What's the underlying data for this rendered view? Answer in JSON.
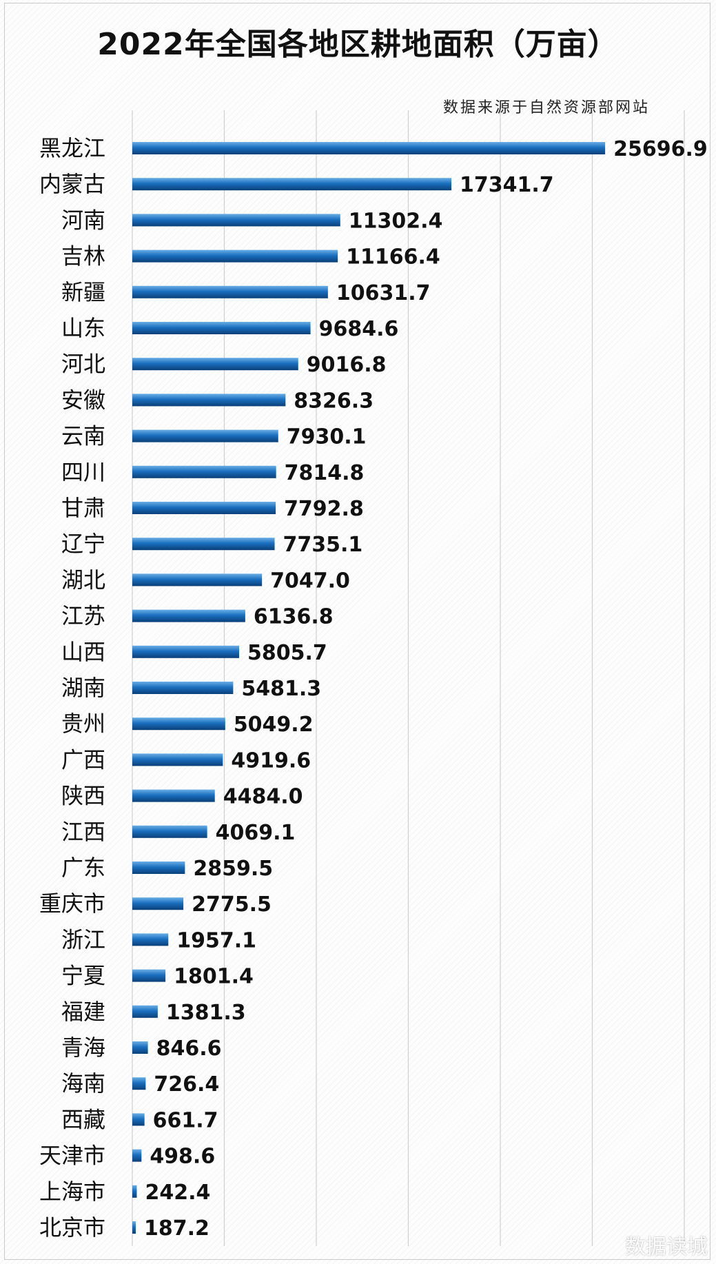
{
  "title": "2022年全国各地区耕地面积（万亩）",
  "source": "数据来源于自然资源部网站",
  "watermark": "数据读城",
  "colors": {
    "bar_dark": "#0a4a8a",
    "bar_mid": "#1a6fbf",
    "bar_light": "#5fa3e0",
    "grid": "#cfcfcf"
  },
  "chart_data": {
    "type": "bar",
    "orientation": "horizontal",
    "title": "2022年全国各地区耕地面积（万亩）",
    "xlim": [
      0,
      30000
    ],
    "grid": true,
    "categories": [
      "黑龙江",
      "内蒙古",
      "河南",
      "吉林",
      "新疆",
      "山东",
      "河北",
      "安徽",
      "云南",
      "四川",
      "甘肃",
      "辽宁",
      "湖北",
      "江苏",
      "山西",
      "湖南",
      "贵州",
      "广西",
      "陕西",
      "江西",
      "广东",
      "重庆市",
      "浙江",
      "宁夏",
      "福建",
      "青海",
      "海南",
      "西藏",
      "天津市",
      "上海市",
      "北京市"
    ],
    "values": [
      25696.9,
      17341.7,
      11302.4,
      11166.4,
      10631.7,
      9684.6,
      9016.8,
      8326.3,
      7930.1,
      7814.8,
      7792.8,
      7735.1,
      7047.0,
      6136.8,
      5805.7,
      5481.3,
      5049.2,
      4919.6,
      4484.0,
      4069.1,
      2859.5,
      2775.5,
      1957.1,
      1801.4,
      1381.3,
      846.6,
      726.4,
      661.7,
      498.6,
      242.4,
      187.2
    ],
    "value_labels": [
      "25696.9",
      "17341.7",
      "11302.4",
      "11166.4",
      "10631.7",
      "9684.6",
      "9016.8",
      "8326.3",
      "7930.1",
      "7814.8",
      "7792.8",
      "7735.1",
      "7047.0",
      "6136.8",
      "5805.7",
      "5481.3",
      "5049.2",
      "4919.6",
      "4484.0",
      "4069.1",
      "2859.5",
      "2775.5",
      "1957.1",
      "1801.4",
      "1381.3",
      "846.6",
      "726.4",
      "661.7",
      "498.6",
      "242.4",
      "187.2"
    ]
  }
}
